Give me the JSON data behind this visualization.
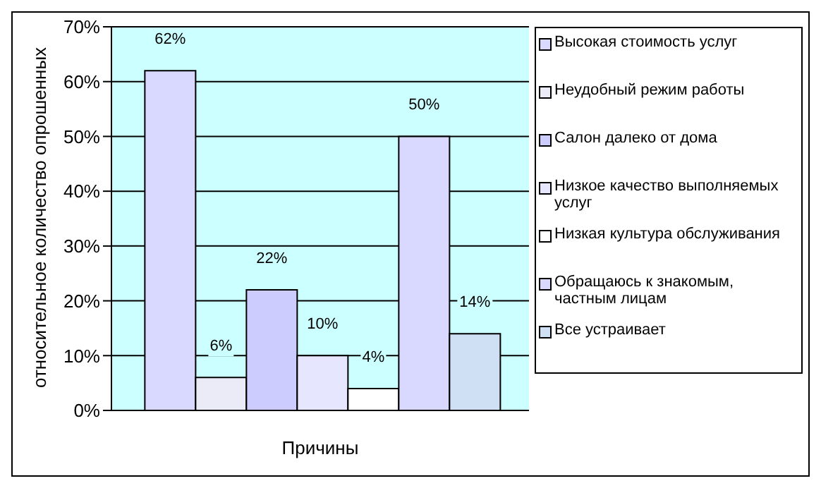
{
  "chart_data": {
    "type": "bar",
    "ylabel": "относительное количество опрошенных",
    "categories": [
      "Причины"
    ],
    "series": [
      {
        "name": "Высокая стоимость услуг",
        "color": "#d9d9ff",
        "values": [
          62
        ],
        "value_labels": [
          "62%"
        ]
      },
      {
        "name": "Неудобный режим работы",
        "color": "#ebebf8",
        "values": [
          6
        ],
        "value_labels": [
          "6%"
        ]
      },
      {
        "name": "Салон далеко от дома",
        "color": "#ccccff",
        "values": [
          22
        ],
        "value_labels": [
          "22%"
        ]
      },
      {
        "name": "Низкое качество выполняемых услуг",
        "color": "#e6e6ff",
        "values": [
          10
        ],
        "value_labels": [
          "10%"
        ]
      },
      {
        "name": "Низкая культура обслуживания",
        "color": "#ffffff",
        "values": [
          4
        ],
        "value_labels": [
          "4%"
        ]
      },
      {
        "name": "Обращаюсь к знакомым, частным лицам",
        "color": "#d9d9ff",
        "values": [
          50
        ],
        "value_labels": [
          "50%"
        ]
      },
      {
        "name": "Все устраивает",
        "color": "#cfe0f5",
        "values": [
          14
        ],
        "value_labels": [
          "14%"
        ]
      }
    ],
    "ylim": [
      0,
      70
    ],
    "yticks": [
      {
        "value": 0,
        "label": "0%"
      },
      {
        "value": 10,
        "label": "10%"
      },
      {
        "value": 20,
        "label": "20%"
      },
      {
        "value": 30,
        "label": "30%"
      },
      {
        "value": 40,
        "label": "40%"
      },
      {
        "value": 50,
        "label": "50%"
      },
      {
        "value": 60,
        "label": "60%"
      },
      {
        "value": 70,
        "label": "70%"
      }
    ],
    "grid": "y",
    "legend": "right"
  }
}
